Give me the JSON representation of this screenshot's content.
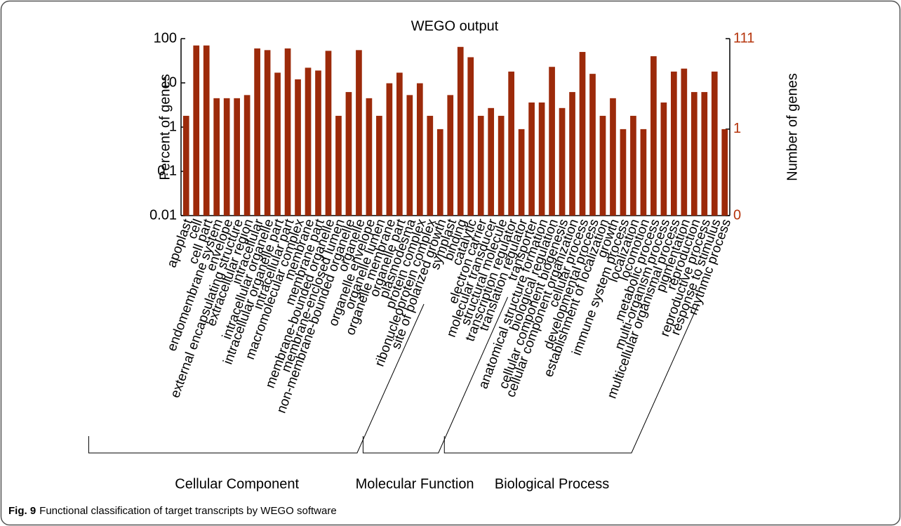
{
  "chart_data": {
    "type": "bar",
    "title": "WEGO output",
    "y_label": "Percent of genes",
    "y2_label": "Number of genes",
    "log_scale": true,
    "color": "#9c2a0a",
    "y2_color": "#b5340c",
    "ylim": [
      0.01,
      100
    ],
    "yticks": [
      0.01,
      0.1,
      1,
      10,
      100
    ],
    "y2lim": [
      0.0111,
      111
    ],
    "y2ticks": [
      {
        "value": 0.0111,
        "label": "0"
      },
      1,
      111
    ],
    "groups": [
      {
        "name": "Cellular Component",
        "categories": [
          "apoplast",
          "cell",
          "cell part",
          "endomembrane system",
          "envelope",
          "external encapsulating structure",
          "extracellular region",
          "intracellular",
          "intracellular organelle",
          "intracellular organelle part",
          "intracellular part",
          "macromolecular complex",
          "membrane",
          "membrane part",
          "membrane-bounded organelle",
          "membrane-enclosed lumen",
          "non-membrane-bounded organelle",
          "organelle",
          "organelle envelope",
          "organelle lumen",
          "organelle membrane",
          "organelle part",
          "plasmodesma",
          "protein complex",
          "ribonucleoprotein complex",
          "site of polarized growth",
          "symplast"
        ],
        "values": [
          1.8,
          70,
          70,
          4.5,
          4.5,
          4.5,
          5.3,
          60,
          55,
          17,
          60,
          12,
          22,
          19,
          53,
          1.8,
          6.2,
          55,
          4.5,
          1.8,
          9.8,
          17,
          5.3,
          9.8,
          1.8,
          0.9,
          5.3
        ]
      },
      {
        "name": "Molecular Function",
        "categories": [
          "binding",
          "catalytic",
          "electron carrier",
          "molecular transducer",
          "structural molecule",
          "transcription regulator",
          "translation regulator",
          "transporter"
        ],
        "values": [
          65,
          38,
          1.8,
          2.7,
          1.8,
          18,
          0.9,
          3.6
        ]
      },
      {
        "name": "Biological Process",
        "categories": [
          "anatomical structure formation",
          "biological regulation",
          "cellular component biogenesis",
          "cellular component organization",
          "cellular process",
          "developmental process",
          "establishment of localization",
          "growth",
          "immune system process",
          "localization",
          "locomotion",
          "metabolic process",
          "multi-organism process",
          "multicellular organismal process",
          "pigmentation",
          "reproduction",
          "reproductive process",
          "response to stimulus",
          "rhythmic process"
        ],
        "values": [
          3.6,
          23,
          2.7,
          6.2,
          50,
          16,
          1.8,
          4.5,
          0.9,
          1.8,
          0.9,
          40,
          3.6,
          18,
          21,
          6.2,
          6.2,
          18,
          0.9
        ]
      }
    ]
  },
  "caption": {
    "label": "Fig. 9",
    "text": "Functional classification of target transcripts by WEGO software"
  }
}
